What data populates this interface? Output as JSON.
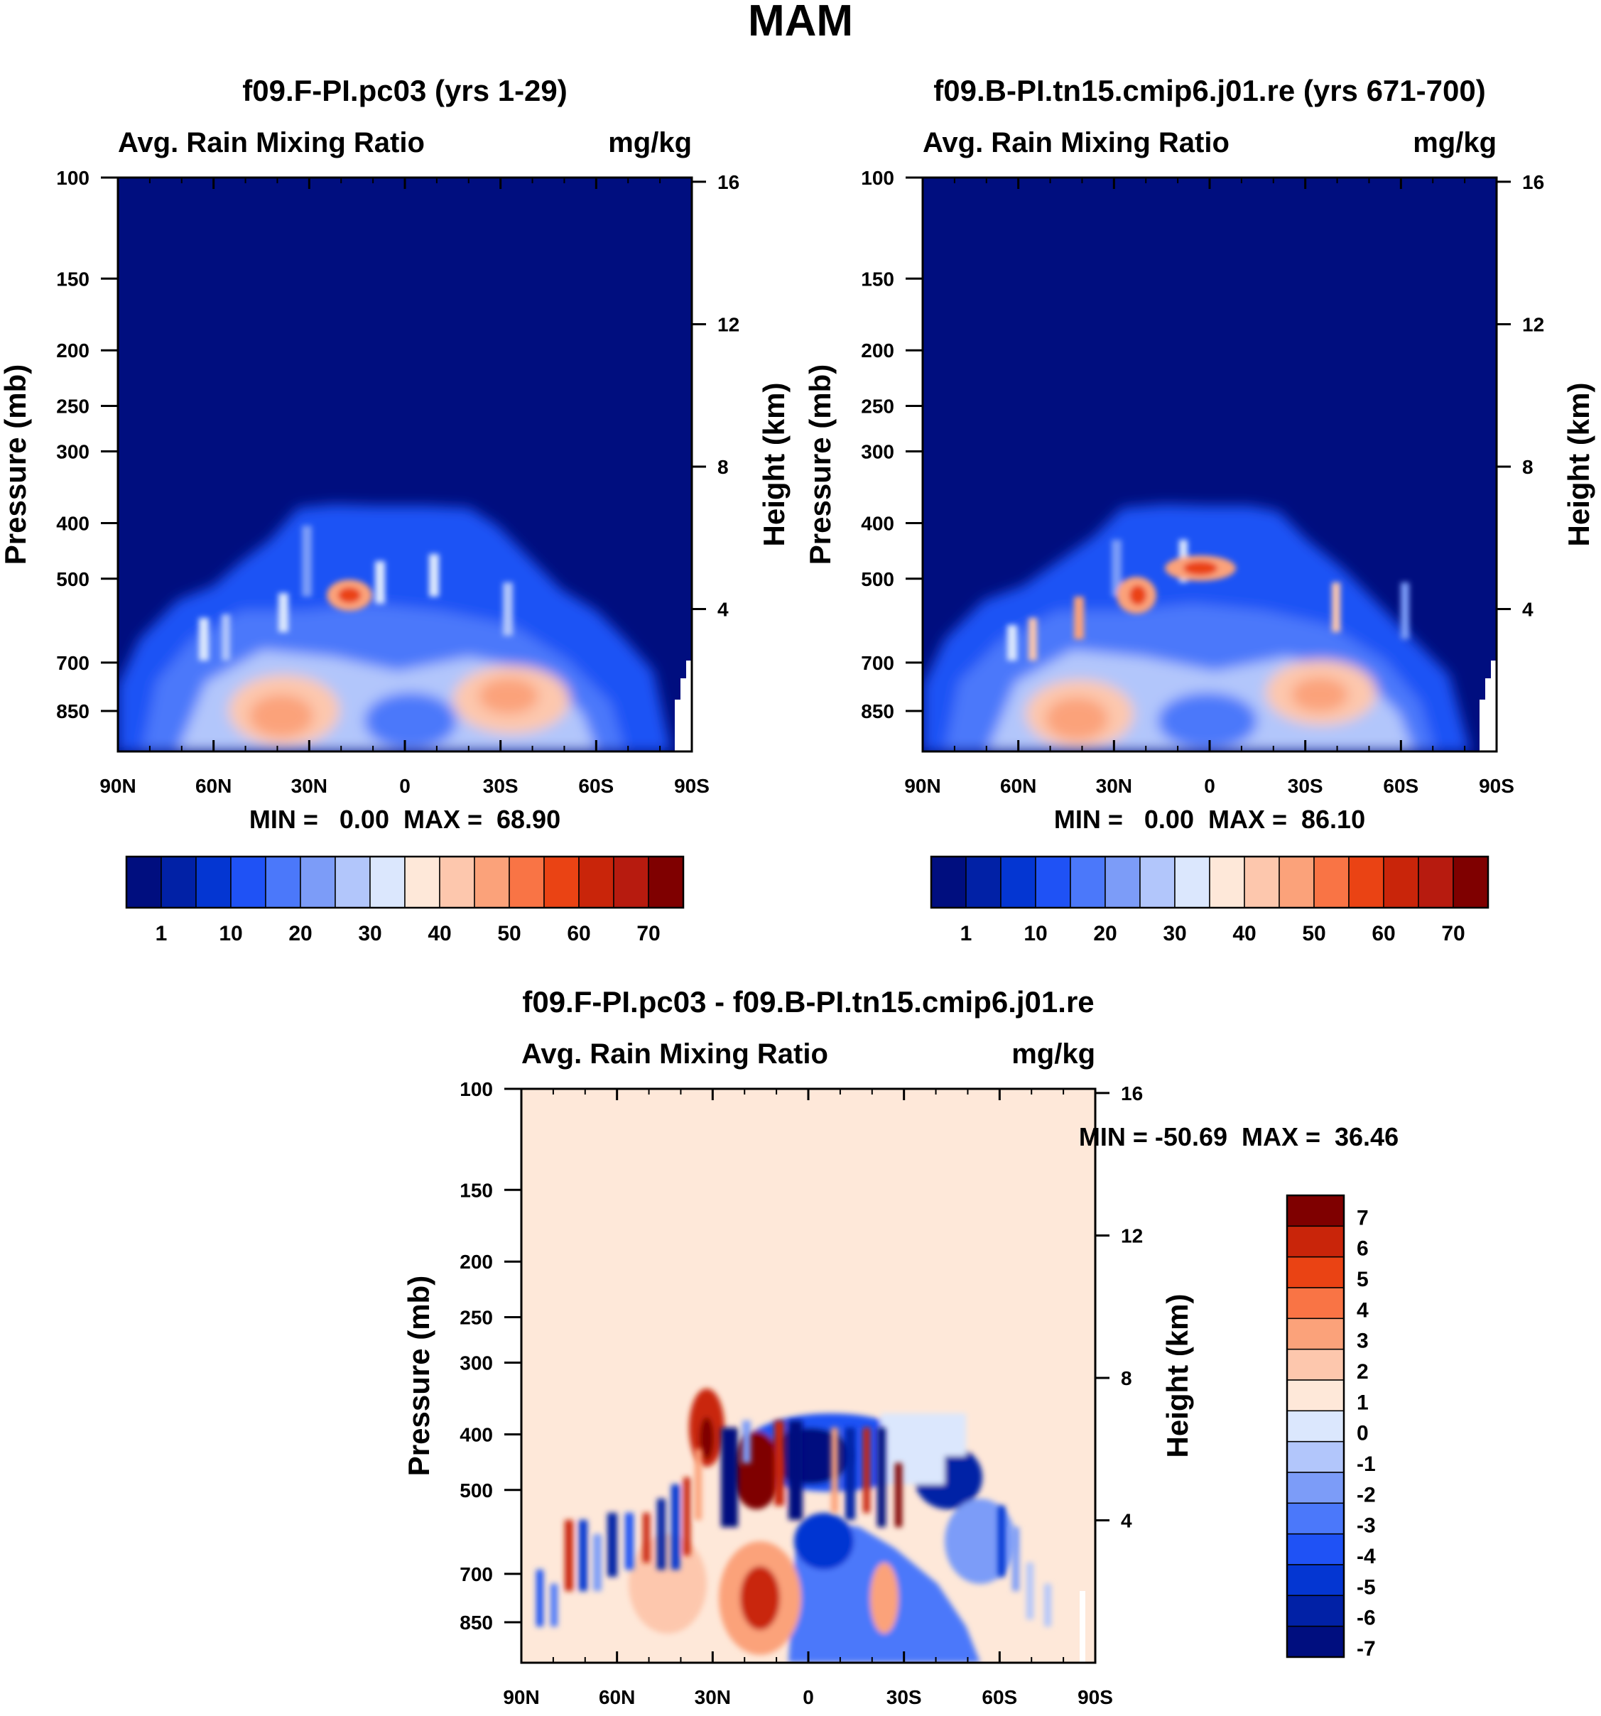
{
  "figure": {
    "title": "MAM"
  },
  "colors": {
    "abs": [
      "#000e7f",
      "#0121a6",
      "#0436d2",
      "#1f52f5",
      "#4b78fa",
      "#7c9cf8",
      "#b2c6fb",
      "#dbe7fd",
      "#fee8d9",
      "#fdc7ad",
      "#fba27a",
      "#f97445",
      "#ea4314",
      "#c9250a",
      "#b71b0f",
      "#7f0000"
    ],
    "diff": [
      "#000e7f",
      "#0121a6",
      "#0436d2",
      "#1f52f5",
      "#4b78fa",
      "#7c9cf8",
      "#b2c6fb",
      "#dbe7fd",
      "#fee8d9",
      "#fdc7ad",
      "#fba27a",
      "#f97445",
      "#ea4314",
      "#c9250a",
      "#7f0000"
    ]
  },
  "chart_data": [
    {
      "type": "heatmap",
      "id": "p1",
      "title": "f09.F-PI.pc03 (yrs 1-29)",
      "left_string": "Avg. Rain Mixing Ratio",
      "right_string": "mg/kg",
      "xlabel": "",
      "ylabel": "Pressure (mb)",
      "y2label": "Height (km)",
      "x_ticks": [
        "90N",
        "60N",
        "30N",
        "0",
        "30S",
        "60S",
        "90S"
      ],
      "y_ticks": [
        "100",
        "150",
        "200",
        "250",
        "300",
        "400",
        "500",
        "700",
        "850"
      ],
      "y_tick_values": [
        100,
        150,
        200,
        250,
        300,
        400,
        500,
        700,
        850
      ],
      "y2_ticks": [
        "16",
        "12",
        "8",
        "4"
      ],
      "y2_tick_values": [
        16,
        12,
        8,
        4
      ],
      "ylim": [
        100,
        1000
      ],
      "xlim": [
        90,
        -90
      ],
      "stats": "MIN =   0.00  MAX =  68.90",
      "colorbar_labels": [
        "1",
        "10",
        "20",
        "30",
        "40",
        "50",
        "60",
        "70"
      ],
      "colorbar_levels": 16
    },
    {
      "type": "heatmap",
      "id": "p2",
      "title": "f09.B-PI.tn15.cmip6.j01.re (yrs 671-700)",
      "left_string": "Avg. Rain Mixing Ratio",
      "right_string": "mg/kg",
      "xlabel": "",
      "ylabel": "Pressure (mb)",
      "y2label": "Height (km)",
      "x_ticks": [
        "90N",
        "60N",
        "30N",
        "0",
        "30S",
        "60S",
        "90S"
      ],
      "y_ticks": [
        "100",
        "150",
        "200",
        "250",
        "300",
        "400",
        "500",
        "700",
        "850"
      ],
      "y_tick_values": [
        100,
        150,
        200,
        250,
        300,
        400,
        500,
        700,
        850
      ],
      "y2_ticks": [
        "16",
        "12",
        "8",
        "4"
      ],
      "y2_tick_values": [
        16,
        12,
        8,
        4
      ],
      "ylim": [
        100,
        1000
      ],
      "xlim": [
        90,
        -90
      ],
      "stats": "MIN =   0.00  MAX =  86.10",
      "colorbar_labels": [
        "1",
        "10",
        "20",
        "30",
        "40",
        "50",
        "60",
        "70"
      ],
      "colorbar_levels": 16
    },
    {
      "type": "heatmap",
      "id": "p3",
      "title": "f09.F-PI.pc03 - f09.B-PI.tn15.cmip6.j01.re",
      "left_string": "Avg. Rain Mixing Ratio",
      "right_string": "mg/kg",
      "xlabel": "",
      "ylabel": "Pressure (mb)",
      "y2label": "Height (km)",
      "x_ticks": [
        "90N",
        "60N",
        "30N",
        "0",
        "30S",
        "60S",
        "90S"
      ],
      "y_ticks": [
        "100",
        "150",
        "200",
        "250",
        "300",
        "400",
        "500",
        "700",
        "850"
      ],
      "y_tick_values": [
        100,
        150,
        200,
        250,
        300,
        400,
        500,
        700,
        850
      ],
      "y2_ticks": [
        "16",
        "12",
        "8",
        "4"
      ],
      "y2_tick_values": [
        16,
        12,
        8,
        4
      ],
      "ylim": [
        100,
        1000
      ],
      "xlim": [
        90,
        -90
      ],
      "stats": "MIN = -50.69  MAX =  36.46",
      "colorbar_labels": [
        "7",
        "6",
        "5",
        "4",
        "3",
        "2",
        "1",
        "0",
        "-1",
        "-2",
        "-3",
        "-4",
        "-5",
        "-6",
        "-7"
      ],
      "colorbar_levels": 15
    }
  ]
}
